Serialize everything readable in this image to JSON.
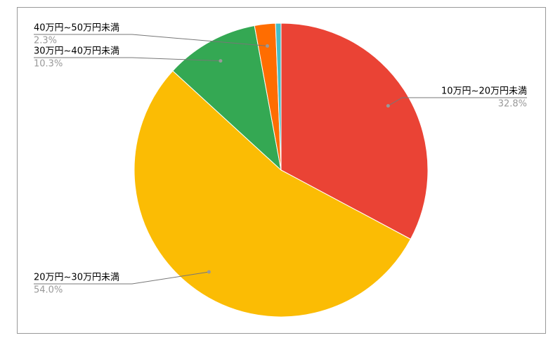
{
  "chart_data": {
    "type": "pie",
    "categories": [
      "10万円~20万円未満",
      "20万円~30万円未満",
      "30万円~40万円未満",
      "40万円~50万円未満",
      null
    ],
    "values": [
      32.8,
      54.0,
      10.3,
      2.3,
      0.6
    ],
    "value_labels": [
      "32.8%",
      "54.0%",
      "10.3%",
      "2.3%",
      null
    ],
    "colors": [
      "#ea4335",
      "#fbbc04",
      "#34a853",
      "#ff6d01",
      "#46bdc6"
    ]
  }
}
